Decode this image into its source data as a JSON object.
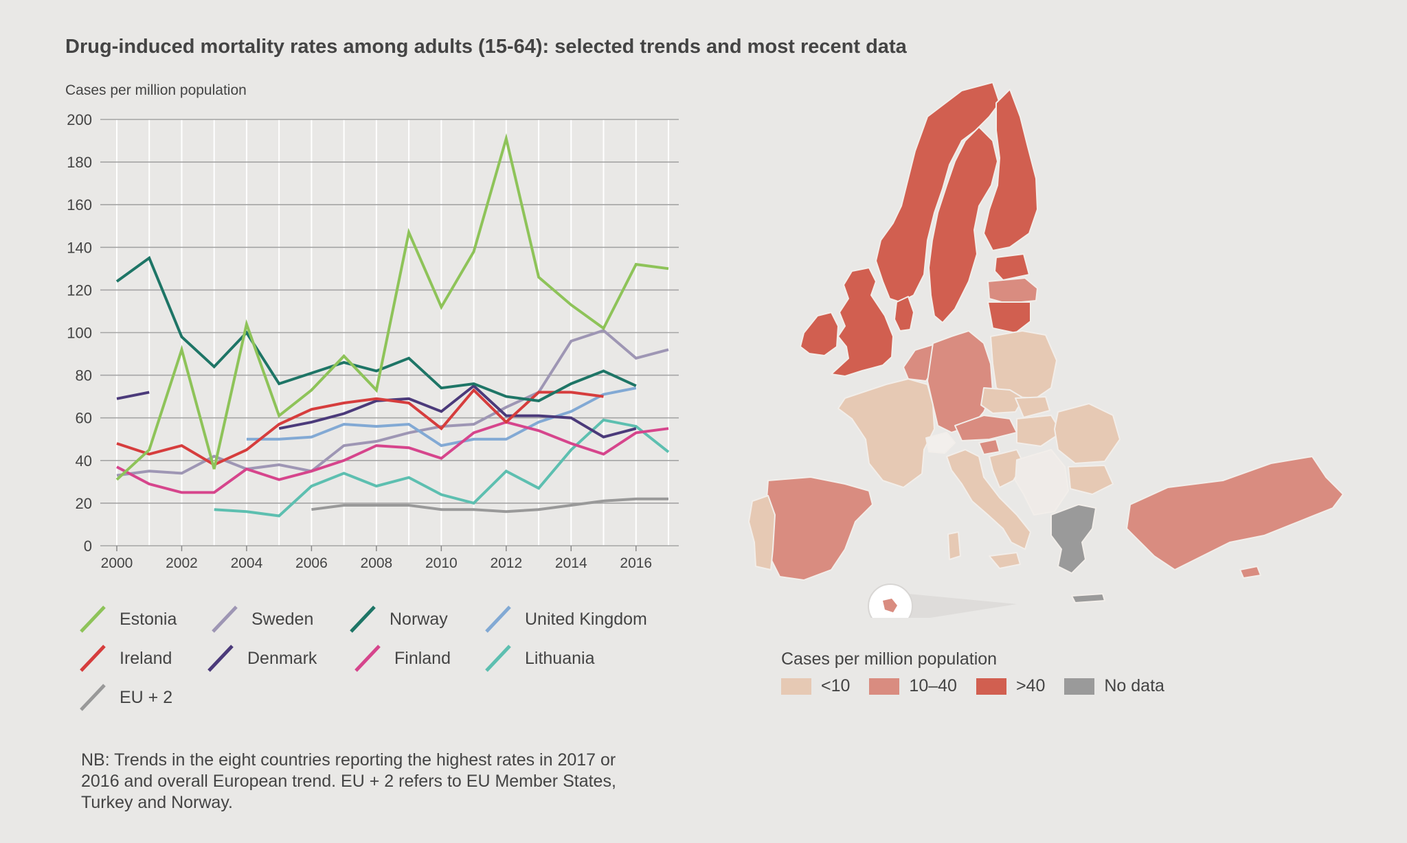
{
  "title": "Drug-induced mortality rates among adults (15-64): selected trends and most recent data",
  "chart_data": {
    "type": "line",
    "title": "Drug-induced mortality rates among adults (15-64): selected trends and most recent data",
    "ylabel": "Cases per million population",
    "xlabel": "",
    "ylim": [
      0,
      200
    ],
    "xlim": [
      2000,
      2017
    ],
    "yticks": [
      "0",
      "20",
      "40",
      "60",
      "80",
      "100",
      "120",
      "140",
      "160",
      "180",
      "200"
    ],
    "xticks": [
      "2000",
      "2002",
      "2004",
      "2006",
      "2008",
      "2010",
      "2012",
      "2014",
      "2016"
    ],
    "series": [
      {
        "name": "EU + 2",
        "color": "#999999",
        "x": [
          2006,
          2007,
          2008,
          2009,
          2010,
          2011,
          2012,
          2013,
          2014,
          2015,
          2016,
          2017
        ],
        "values": [
          17,
          19,
          19,
          19,
          17,
          17,
          16,
          17,
          19,
          21,
          22,
          22
        ]
      },
      {
        "name": "Sweden",
        "color": "#9e96b4",
        "x": [
          2000,
          2001,
          2002,
          2003,
          2004,
          2005,
          2006,
          2007,
          2008,
          2009,
          2010,
          2011,
          2012,
          2013,
          2014,
          2015,
          2016,
          2017
        ],
        "values": [
          33,
          35,
          34,
          42,
          36,
          38,
          35,
          47,
          49,
          53,
          56,
          57,
          65,
          72,
          96,
          101,
          88,
          92
        ]
      },
      {
        "name": "Lithuania",
        "color": "#5dbfb0",
        "x": [
          2003,
          2004,
          2005,
          2006,
          2007,
          2008,
          2009,
          2010,
          2011,
          2012,
          2013,
          2014,
          2015,
          2016,
          2017
        ],
        "values": [
          17,
          16,
          14,
          28,
          34,
          28,
          32,
          24,
          20,
          35,
          27,
          45,
          59,
          56,
          44
        ]
      },
      {
        "name": "United Kingdom",
        "color": "#82a9d4",
        "x": [
          2004,
          2005,
          2006,
          2007,
          2008,
          2009,
          2010,
          2011,
          2012,
          2013,
          2014,
          2015,
          2016
        ],
        "values": [
          50,
          50,
          51,
          57,
          56,
          57,
          47,
          50,
          50,
          58,
          63,
          71,
          74
        ]
      },
      {
        "name": "Finland",
        "color": "#d6458c",
        "x": [
          2000,
          2001,
          2002,
          2003,
          2004,
          2005,
          2006,
          2007,
          2008,
          2009,
          2010,
          2011,
          2012,
          2013,
          2014,
          2015,
          2016,
          2017
        ],
        "values": [
          37,
          29,
          25,
          25,
          36,
          31,
          35,
          40,
          47,
          46,
          41,
          53,
          58,
          54,
          48,
          43,
          53,
          55
        ]
      },
      {
        "name": "Denmark",
        "color": "#4b3a7a",
        "x_a": [
          2000,
          2001
        ],
        "values_a": [
          69,
          72
        ],
        "x": [
          2005,
          2006,
          2007,
          2008,
          2009,
          2010,
          2011,
          2012,
          2013,
          2014,
          2015,
          2016
        ],
        "values": [
          55,
          58,
          62,
          68,
          69,
          63,
          75,
          61,
          61,
          60,
          51,
          55
        ]
      },
      {
        "name": "Ireland",
        "color": "#d63d3d",
        "x": [
          2000,
          2001,
          2002,
          2003,
          2004,
          2005,
          2006,
          2007,
          2008,
          2009,
          2010,
          2011,
          2012,
          2013,
          2014,
          2015
        ],
        "values": [
          48,
          43,
          47,
          38,
          45,
          57,
          64,
          67,
          69,
          67,
          55,
          73,
          58,
          72,
          72,
          70
        ]
      },
      {
        "name": "Norway",
        "color": "#1e7566",
        "x": [
          2000,
          2001,
          2002,
          2003,
          2004,
          2005,
          2006,
          2007,
          2008,
          2009,
          2010,
          2011,
          2012,
          2013,
          2014,
          2015,
          2016
        ],
        "values": [
          124,
          135,
          98,
          84,
          100,
          76,
          81,
          86,
          82,
          88,
          74,
          76,
          70,
          68,
          76,
          82,
          75
        ]
      },
      {
        "name": "Estonia",
        "color": "#8ec359",
        "x": [
          2000,
          2001,
          2002,
          2003,
          2004,
          2005,
          2006,
          2007,
          2008,
          2009,
          2010,
          2011,
          2012,
          2013,
          2014,
          2015,
          2016,
          2017
        ],
        "values": [
          31,
          45,
          92,
          36,
          104,
          61,
          73,
          89,
          73,
          147,
          112,
          138,
          191,
          126,
          113,
          102,
          132,
          130
        ]
      }
    ]
  },
  "legend": [
    {
      "label": "Estonia",
      "color": "#8ec359"
    },
    {
      "label": "Sweden",
      "color": "#9e96b4"
    },
    {
      "label": "Norway",
      "color": "#1e7566"
    },
    {
      "label": "United Kingdom",
      "color": "#82a9d4"
    },
    {
      "label": "Ireland",
      "color": "#d63d3d"
    },
    {
      "label": "Denmark",
      "color": "#4b3a7a"
    },
    {
      "label": "Finland",
      "color": "#d6458c"
    },
    {
      "label": "Lithuania",
      "color": "#5dbfb0"
    },
    {
      "label": "EU + 2",
      "color": "#999999"
    }
  ],
  "note": "NB: Trends in the eight countries reporting the highest rates in 2017 or 2016 and overall European trend. EU + 2 refers to EU Member States, Turkey and Norway.",
  "map_legend": {
    "title": "Cases per million population",
    "items": [
      {
        "label": "<10",
        "color": "#e6c9b4"
      },
      {
        "label": "10–40",
        "color": "#d98c80"
      },
      {
        "label": ">40",
        "color": "#d15f50"
      },
      {
        "label": "No data",
        "color": "#9a9a9a"
      }
    ]
  }
}
